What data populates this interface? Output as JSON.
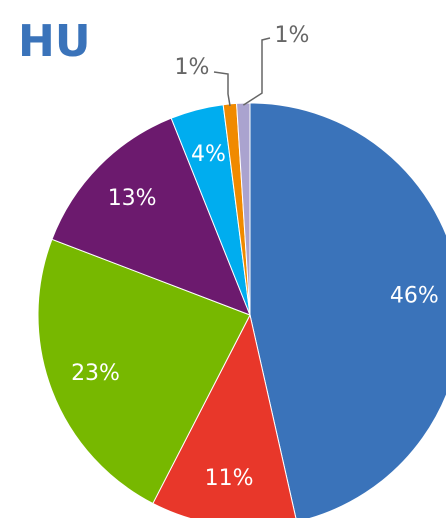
{
  "chart_data": {
    "type": "pie",
    "title": "HU",
    "values": [
      46,
      11,
      23,
      13,
      4,
      1,
      1
    ],
    "value_labels": [
      "46%",
      "11%",
      "23%",
      "13%",
      "4%",
      "1%",
      "1%"
    ],
    "colors": [
      "#3a73ba",
      "#e8372a",
      "#77b800",
      "#6c1a6e",
      "#00adef",
      "#f08a00",
      "#aaa3cf"
    ]
  }
}
